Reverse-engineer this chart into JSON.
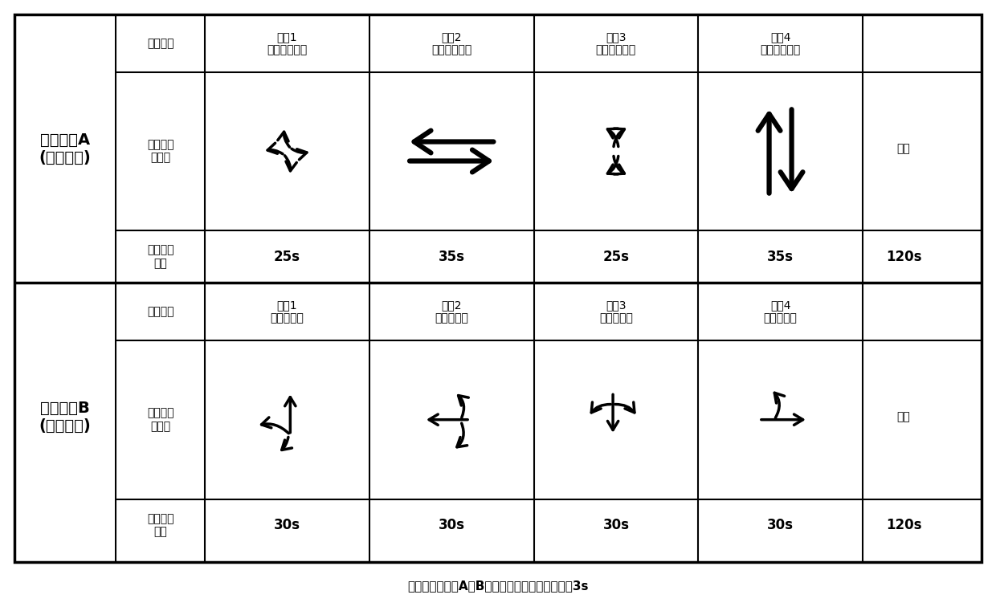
{
  "note": "注：该案例方案A、B中有效绿灯时间含黄灯时间3s",
  "background_color": "#ffffff",
  "border_color": "#000000",
  "scheme_a_label": "信号方案A\n(对向放行)",
  "scheme_b_label": "信号方案B\n(单口放行)",
  "signal_stage": "信号阶段",
  "flow_label": "放行车流\n示意图",
  "green_label": "有效绿灯\n时间",
  "cycle_label": "周期",
  "phase_a1": "阶段1\n东西左转放行",
  "phase_a2": "阶段2\n东西直行放行",
  "phase_a3": "阶段3\n南北左转放行",
  "phase_a4": "阶段4\n南北直行放行",
  "phase_b1": "阶段1\n南单口放行",
  "phase_b2": "阶段2\n东单口放行",
  "phase_b3": "阶段3\n北单口放行",
  "phase_b4": "阶段4\n西单口放行",
  "green_times_a": [
    "25s",
    "35s",
    "25s",
    "35s",
    "120s"
  ],
  "green_times_b": [
    "30s",
    "30s",
    "30s",
    "30s",
    "120s"
  ]
}
